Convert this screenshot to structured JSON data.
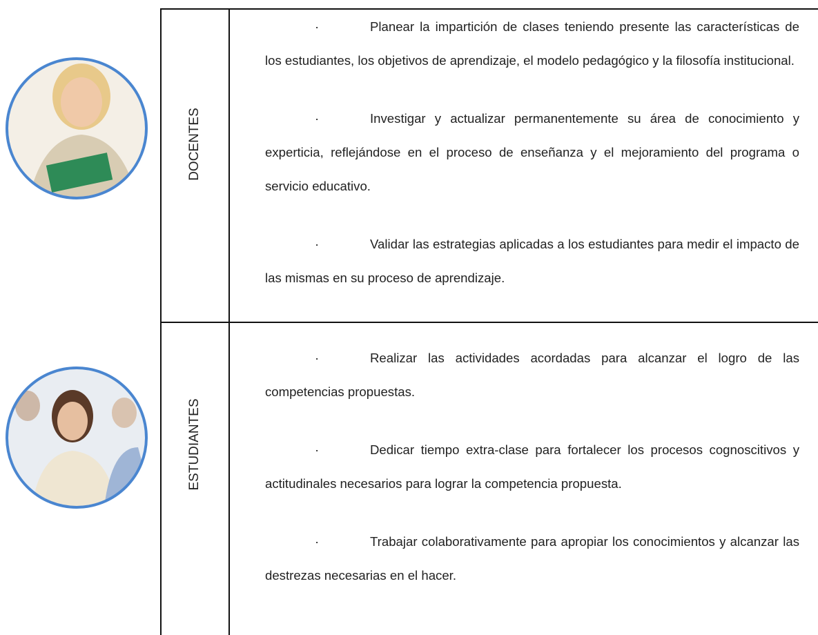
{
  "bullet": "·",
  "rows": [
    {
      "label": "DOCENTES",
      "items": [
        "Planear la impartición de clases teniendo presente las características de los estudiantes, los objetivos de aprendizaje, el modelo pedagógico y la filosofía institucional.",
        "Investigar y actualizar permanentemente su área de conocimiento y experticia, reflejándose en el proceso de enseñanza y el mejoramiento del programa o servicio educativo.",
        "Validar las estrategias aplicadas a los estudiantes para medir el impacto de las mismas en su proceso de aprendizaje."
      ]
    },
    {
      "label": "ESTUDIANTES",
      "items": [
        "Realizar las actividades acordadas para alcanzar el logro de las competencias propuestas.",
        "Dedicar tiempo extra-clase para fortalecer los procesos cognoscitivos y actitudinales necesarios para lograr la competencia propuesta.",
        "Trabajar colaborativamente para apropiar los conocimientos y alcanzar las destrezas necesarias en el hacer."
      ]
    }
  ]
}
